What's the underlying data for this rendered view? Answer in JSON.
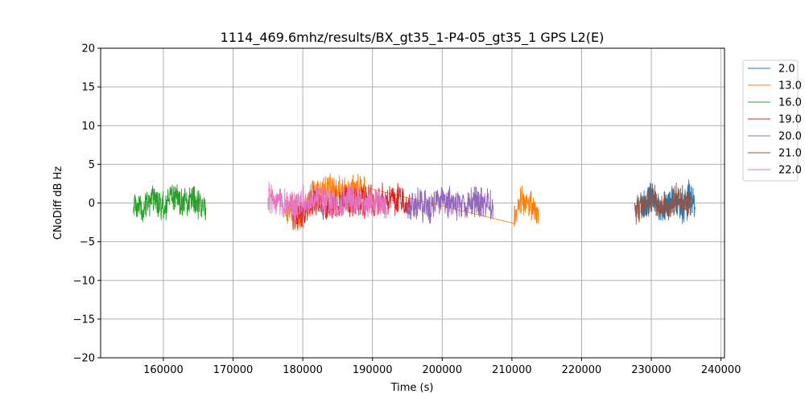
{
  "chart_data": {
    "type": "line",
    "title": "1114_469.6mhz/results/BX_gt35_1-P4-05_gt35_1 GPS L2(E)",
    "xlabel": "Time (s)",
    "ylabel": "CNoDiff dB Hz",
    "xlim": [
      151000,
      240500
    ],
    "ylim": [
      -20,
      20
    ],
    "xticks": [
      160000,
      170000,
      180000,
      190000,
      200000,
      210000,
      220000,
      230000,
      240000
    ],
    "yticks": [
      -20,
      -15,
      -10,
      -5,
      0,
      5,
      10,
      15,
      20
    ],
    "grid": true,
    "legend_position": "right-outside-top",
    "series": [
      {
        "name": "2.0",
        "color": "#1f77b4",
        "x": [
          228500,
          230000,
          231500,
          233000,
          234500,
          235500,
          236300
        ],
        "y": [
          -0.5,
          0.8,
          -1.2,
          0.5,
          -0.8,
          1.5,
          -0.5
        ]
      },
      {
        "name": "13.0",
        "color": "#ff7f0e",
        "x": [
          177500,
          178500,
          179500,
          181500,
          183500,
          186000,
          189000,
          210300,
          211500,
          212500,
          213800
        ],
        "y": [
          -0.5,
          -1.0,
          -2.0,
          1.0,
          2.0,
          1.5,
          2.0,
          -1.8,
          0.5,
          -0.5,
          -0.8
        ]
      },
      {
        "name": "16.0",
        "color": "#2ca02c",
        "x": [
          155700,
          157000,
          158500,
          160000,
          161500,
          163000,
          164500,
          166100
        ],
        "y": [
          -0.3,
          -1.0,
          0.3,
          -0.5,
          0.8,
          0.0,
          0.5,
          -0.6
        ]
      },
      {
        "name": "19.0",
        "color": "#d62728",
        "x": [
          178500,
          180000,
          181500,
          183500,
          186000,
          189000,
          192000,
          194000,
          195500
        ],
        "y": [
          -1.5,
          -1.5,
          0.5,
          -0.8,
          0.3,
          0.2,
          0.4,
          0.3,
          -0.3
        ]
      },
      {
        "name": "20.0",
        "color": "#9467bd",
        "x": [
          195000,
          196500,
          198000,
          200000,
          202000,
          204000,
          206000,
          207300
        ],
        "y": [
          -1.5,
          0.2,
          -0.8,
          0.5,
          -0.3,
          0.3,
          0.2,
          -0.2
        ]
      },
      {
        "name": "21.0",
        "color": "#8c564b",
        "x": [
          227600,
          229000,
          230500,
          232000,
          233500,
          235000,
          235800
        ],
        "y": [
          -1.2,
          -0.3,
          0.5,
          -0.8,
          0.8,
          0.0,
          -0.5
        ]
      },
      {
        "name": "22.0",
        "color": "#e377c2",
        "x": [
          175000,
          176500,
          178000,
          180000,
          182000,
          184000,
          186500,
          189000,
          191000,
          192000
        ],
        "y": [
          0.5,
          0.3,
          -0.5,
          0.3,
          0.8,
          -0.2,
          0.4,
          -0.3,
          0.2,
          -0.6
        ]
      }
    ]
  }
}
